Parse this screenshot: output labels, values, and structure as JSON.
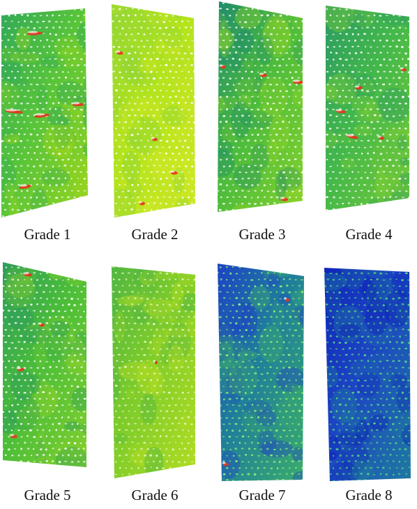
{
  "figure": {
    "panels": [
      {
        "label": "Grade 1",
        "colors": {
          "base": "#57c43a",
          "accent": "#9cd61c",
          "mottle": "#2fa85a",
          "pore": "#ffffff",
          "defect": "#e8321c"
        }
      },
      {
        "label": "Grade 2",
        "colors": {
          "base": "#b4e41c",
          "accent": "#cfe826",
          "mottle": "#8fd436",
          "pore": "#ffffff",
          "defect": "#e8321c"
        }
      },
      {
        "label": "Grade 3",
        "colors": {
          "base": "#4cbc3c",
          "accent": "#8cd42a",
          "mottle": "#1e8a6e",
          "pore": "#ffffff",
          "defect": "#e8321c"
        }
      },
      {
        "label": "Grade 4",
        "colors": {
          "base": "#44b84a",
          "accent": "#7ccc34",
          "mottle": "#2a9a64",
          "pore": "#ffffff",
          "defect": "#e8321c"
        }
      },
      {
        "label": "Grade 5",
        "colors": {
          "base": "#4cbe38",
          "accent": "#8ad22c",
          "mottle": "#2c9c5c",
          "pore": "#ffffff",
          "defect": "#e8321c"
        }
      },
      {
        "label": "Grade 6",
        "colors": {
          "base": "#7ecc2a",
          "accent": "#b6de22",
          "mottle": "#4cb444",
          "pore": "#e8f8c0",
          "defect": "#e8321c"
        }
      },
      {
        "label": "Grade 7",
        "colors": {
          "base": "#1f7e9c",
          "accent": "#3cae6a",
          "mottle": "#1c3ec8",
          "pore": "#9af07a",
          "defect": "#e8321c"
        }
      },
      {
        "label": "Grade 8",
        "colors": {
          "base": "#1c44c4",
          "accent": "#1f7c9e",
          "mottle": "#0e22b8",
          "pore": "#5cd884",
          "defect": "#e8321c"
        }
      }
    ]
  }
}
